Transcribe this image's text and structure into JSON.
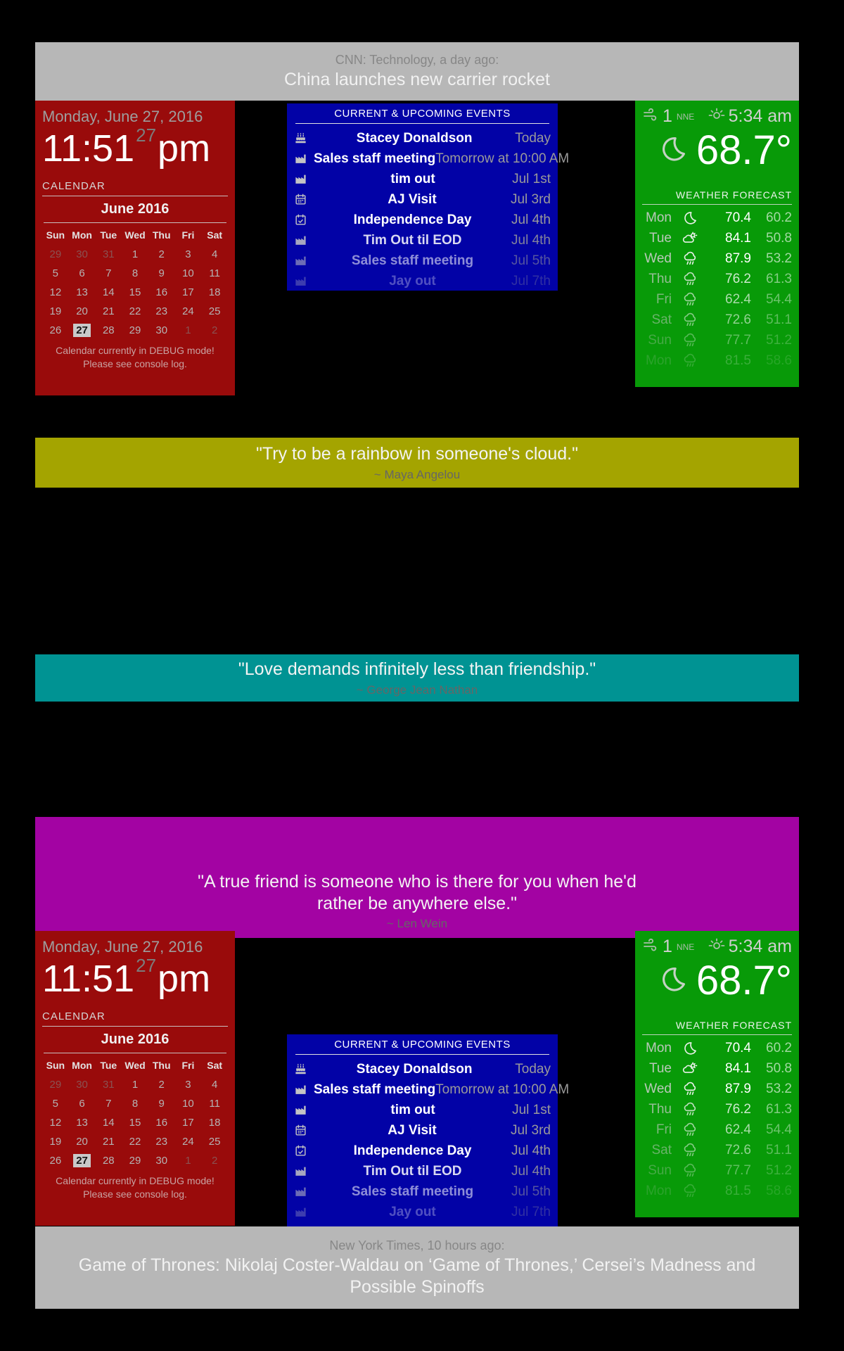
{
  "colors": {
    "background": "#000000",
    "news_banner": "#b7b7b7",
    "clock_calendar_module": "#990b0b",
    "events_module": "#0202a6",
    "weather_module": "#089a08",
    "quote_banner_1": "#a4a400",
    "quote_banner_2": "#009393",
    "quote_banner_3": "#a303a3"
  },
  "news_top": {
    "source": "CNN: Technology, a day ago:",
    "headline": "China launches new carrier rocket"
  },
  "news_bottom": {
    "source": "New York Times, 10 hours ago:",
    "headline": "Game of Thrones: Nikolaj Coster-Waldau on ‘Game of Thrones,’ Cersei’s Madness and Possible Spinoffs"
  },
  "clock": {
    "date": "Monday, June 27, 2016",
    "time": "11:51",
    "seconds": "27",
    "ampm": "pm"
  },
  "calendar_widget": {
    "label": "CALENDAR",
    "month": "June 2016",
    "weekdays": [
      "Sun",
      "Mon",
      "Tue",
      "Wed",
      "Thu",
      "Fri",
      "Sat"
    ],
    "days": [
      {
        "d": "29",
        "state": "dim"
      },
      {
        "d": "30",
        "state": "dim"
      },
      {
        "d": "31",
        "state": "dim"
      },
      {
        "d": "1"
      },
      {
        "d": "2"
      },
      {
        "d": "3"
      },
      {
        "d": "4"
      },
      {
        "d": "5"
      },
      {
        "d": "6"
      },
      {
        "d": "7"
      },
      {
        "d": "8"
      },
      {
        "d": "9"
      },
      {
        "d": "10"
      },
      {
        "d": "11"
      },
      {
        "d": "12"
      },
      {
        "d": "13"
      },
      {
        "d": "14"
      },
      {
        "d": "15"
      },
      {
        "d": "16"
      },
      {
        "d": "17"
      },
      {
        "d": "18"
      },
      {
        "d": "19"
      },
      {
        "d": "20"
      },
      {
        "d": "21"
      },
      {
        "d": "22"
      },
      {
        "d": "23"
      },
      {
        "d": "24"
      },
      {
        "d": "25"
      },
      {
        "d": "26"
      },
      {
        "d": "27",
        "state": "today"
      },
      {
        "d": "28"
      },
      {
        "d": "29"
      },
      {
        "d": "30"
      },
      {
        "d": "1",
        "state": "dim"
      },
      {
        "d": "2",
        "state": "dim"
      }
    ],
    "debug_line1": "Calendar currently in DEBUG mode!",
    "debug_line2": "Please see console log."
  },
  "events": {
    "header": "CURRENT & UPCOMING EVENTS",
    "items": [
      {
        "icon": "birthday-cake",
        "title": "Stacey Donaldson",
        "when": "Today",
        "fade": 1
      },
      {
        "icon": "factory",
        "title": "Sales staff meeting",
        "when": "Tomorrow at 10:00 AM",
        "fade": 1
      },
      {
        "icon": "factory",
        "title": "tim out",
        "when": "Jul 1st",
        "fade": 1
      },
      {
        "icon": "calendar",
        "title": "AJ Visit",
        "when": "Jul 3rd",
        "fade": 1
      },
      {
        "icon": "calendar-check",
        "title": "Independence Day",
        "when": "Jul 4th",
        "fade": 1
      },
      {
        "icon": "factory",
        "title": "Tim Out til EOD",
        "when": "Jul 4th",
        "fade": 0.85
      },
      {
        "icon": "factory",
        "title": "Sales staff meeting",
        "when": "Jul 5th",
        "fade": 0.55
      },
      {
        "icon": "factory",
        "title": "Jay out",
        "when": "Jul 7th",
        "fade": 0.3
      }
    ]
  },
  "weather": {
    "wind_speed": "1",
    "wind_direction": "NNE",
    "sunrise": "5:34 am",
    "current_temp": "68.7°",
    "current_icon": "moon",
    "forecast_header": "WEATHER FORECAST",
    "forecast": [
      {
        "day": "Mon",
        "icon": "moon",
        "max": "70.4",
        "min": "60.2",
        "fade": 1
      },
      {
        "day": "Tue",
        "icon": "cloud-sun",
        "max": "84.1",
        "min": "50.8",
        "fade": 1
      },
      {
        "day": "Wed",
        "icon": "cloud-rain",
        "max": "87.9",
        "min": "53.2",
        "fade": 1
      },
      {
        "day": "Thu",
        "icon": "cloud-rain",
        "max": "76.2",
        "min": "61.3",
        "fade": 0.8
      },
      {
        "day": "Fri",
        "icon": "cloud-rain",
        "max": "62.4",
        "min": "54.4",
        "fade": 0.65
      },
      {
        "day": "Sat",
        "icon": "cloud-rain",
        "max": "72.6",
        "min": "51.1",
        "fade": 0.55
      },
      {
        "day": "Sun",
        "icon": "cloud-rain",
        "max": "77.7",
        "min": "51.2",
        "fade": 0.35
      },
      {
        "day": "Mon",
        "icon": "cloud-rain",
        "max": "81.5",
        "min": "58.6",
        "fade": 0.2
      }
    ]
  },
  "quotes": [
    {
      "text": "\"Try to be a rainbow in someone's cloud.\"",
      "author": "~ Maya Angelou"
    },
    {
      "text": "\"Love demands infinitely less than friendship.\"",
      "author": "~ George Jean Nathan"
    },
    {
      "text": "\"A true friend is someone who is there for you when he'd rather be anywhere else.\"",
      "author": "~ Len Wein"
    }
  ]
}
